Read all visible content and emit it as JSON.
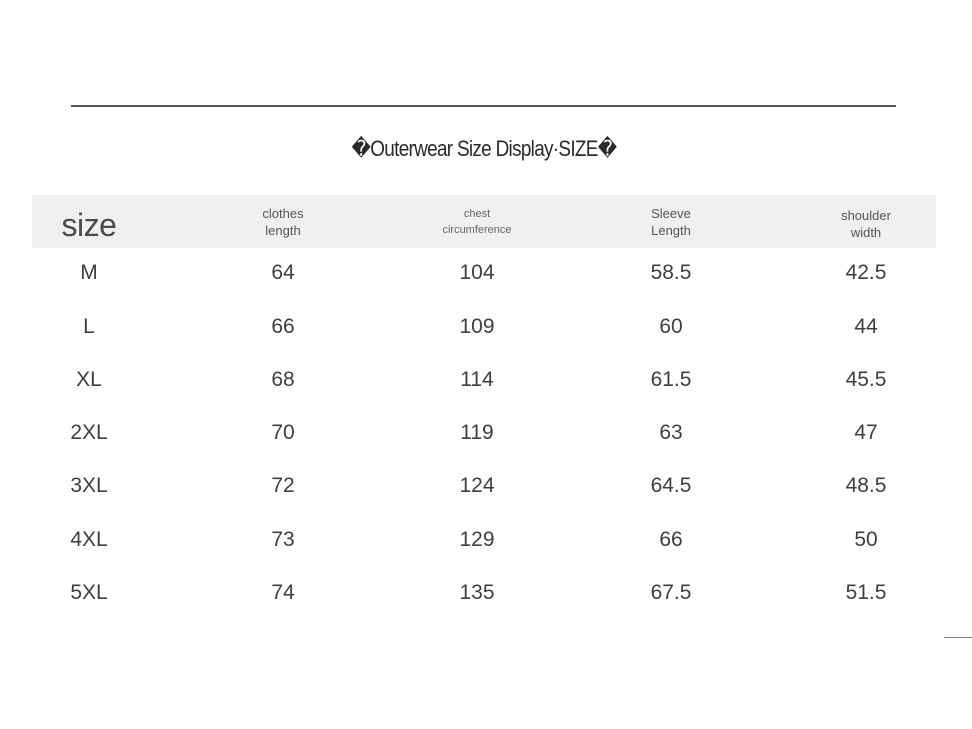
{
  "title": "�Outerwear Size Display·SIZE�",
  "headers": {
    "size": "size",
    "clothes_length_1": "clothes",
    "clothes_length_2": "length",
    "chest_1": "chest",
    "chest_2": "circumference",
    "sleeve_1": "Sleeve",
    "sleeve_2": "Length",
    "shoulder_1": "shoulder",
    "shoulder_2": "width"
  },
  "rows": [
    {
      "size": "M",
      "clothes_length": "64",
      "chest": "104",
      "sleeve": "58.5",
      "shoulder": "42.5"
    },
    {
      "size": "L",
      "clothes_length": "66",
      "chest": "109",
      "sleeve": "60",
      "shoulder": "44"
    },
    {
      "size": "XL",
      "clothes_length": "68",
      "chest": "114",
      "sleeve": "61.5",
      "shoulder": "45.5"
    },
    {
      "size": "2XL",
      "clothes_length": "70",
      "chest": "119",
      "sleeve": "63",
      "shoulder": "47"
    },
    {
      "size": "3XL",
      "clothes_length": "72",
      "chest": "124",
      "sleeve": "64.5",
      "shoulder": "48.5"
    },
    {
      "size": "4XL",
      "clothes_length": "73",
      "chest": "129",
      "sleeve": "66",
      "shoulder": "50"
    },
    {
      "size": "5XL",
      "clothes_length": "74",
      "chest": "135",
      "sleeve": "67.5",
      "shoulder": "51.5"
    }
  ],
  "colors": {
    "background": "#ffffff",
    "row_shade": "#f1f1f1",
    "text": "#3f3f3f",
    "rule": "#555555"
  }
}
